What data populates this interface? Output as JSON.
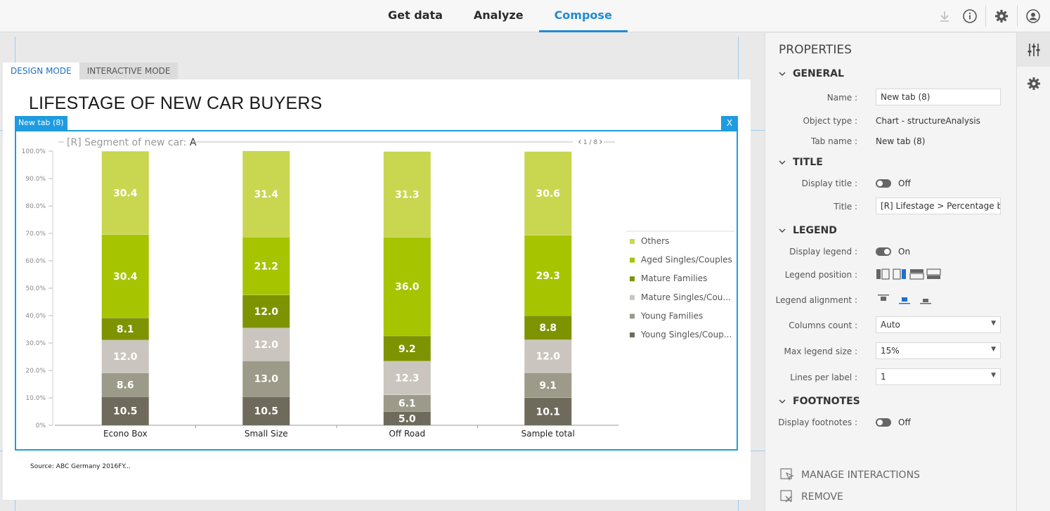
{
  "nav": {
    "tabs": [
      "Get data",
      "Analyze",
      "Compose"
    ],
    "active": "Compose"
  },
  "icons": [
    "download-icon",
    "info-icon",
    "gear-icon",
    "user-icon"
  ],
  "modes": {
    "design": "DESIGN MODE",
    "interactive": "INTERACTIVE MODE"
  },
  "page": {
    "title": "LIFESTAGE OF NEW CAR BUYERS",
    "widget_tag": "New tab (8)",
    "close_label": "X",
    "footnote": "Source: ABC Germany 2016FY..."
  },
  "chart_data": {
    "type": "bar",
    "stacked": true,
    "filter_label": "[R] Segment of new car:",
    "filter_value": "A",
    "pager": "1 / 8",
    "categories": [
      "Econo Box",
      "Small Size",
      "Off Road",
      "Sample total"
    ],
    "ylim": [
      0,
      100
    ],
    "yticks": [
      "0%",
      "10.0%",
      "20.0%",
      "30.0%",
      "40.0%",
      "50.0%",
      "60.0%",
      "70.0%",
      "80.0%",
      "90.0%",
      "100.0%"
    ],
    "series": [
      {
        "name": "Young Singles/Coup...",
        "color": "#6f6b5c",
        "values": [
          10.5,
          10.5,
          5.0,
          10.1
        ]
      },
      {
        "name": "Young Families",
        "color": "#9c9a88",
        "values": [
          8.6,
          13.0,
          6.1,
          9.1
        ]
      },
      {
        "name": "Mature Singles/Cou...",
        "color": "#cac6bf",
        "values": [
          12.0,
          12.0,
          12.3,
          12.0
        ]
      },
      {
        "name": "Mature Families",
        "color": "#7e9300",
        "values": [
          8.1,
          12.0,
          9.2,
          8.8
        ]
      },
      {
        "name": "Aged Singles/Couples",
        "color": "#a6c400",
        "values": [
          30.4,
          21.2,
          36.0,
          29.3
        ]
      },
      {
        "name": "Others",
        "color": "#c9d650",
        "values": [
          30.4,
          31.4,
          31.3,
          30.6
        ]
      }
    ],
    "legend_position": "right"
  },
  "properties": {
    "title": "PROPERTIES",
    "general": {
      "header": "GENERAL",
      "name_label": "Name :",
      "name_value": "New tab (8)",
      "objtype_label": "Object type :",
      "objtype_value": "Chart - structureAnalysis",
      "tabname_label": "Tab name :",
      "tabname_value": "New tab (8)"
    },
    "title_sec": {
      "header": "TITLE",
      "display_label": "Display title :",
      "display_value": "Off",
      "title_label": "Title :",
      "title_value": "[R] Lifestage > Percentage by"
    },
    "legend": {
      "header": "LEGEND",
      "display_label": "Display legend :",
      "display_value": "On",
      "position_label": "Legend position :",
      "alignment_label": "Legend alignment :",
      "columns_label": "Columns count :",
      "columns_value": "Auto",
      "maxsize_label": "Max legend size :",
      "maxsize_value": "15%",
      "lines_label": "Lines per label :",
      "lines_value": "1"
    },
    "footnotes": {
      "header": "FOOTNOTES",
      "display_label": "Display footnotes :",
      "display_value": "Off"
    },
    "manage": "MANAGE INTERACTIONS",
    "remove": "REMOVE"
  }
}
